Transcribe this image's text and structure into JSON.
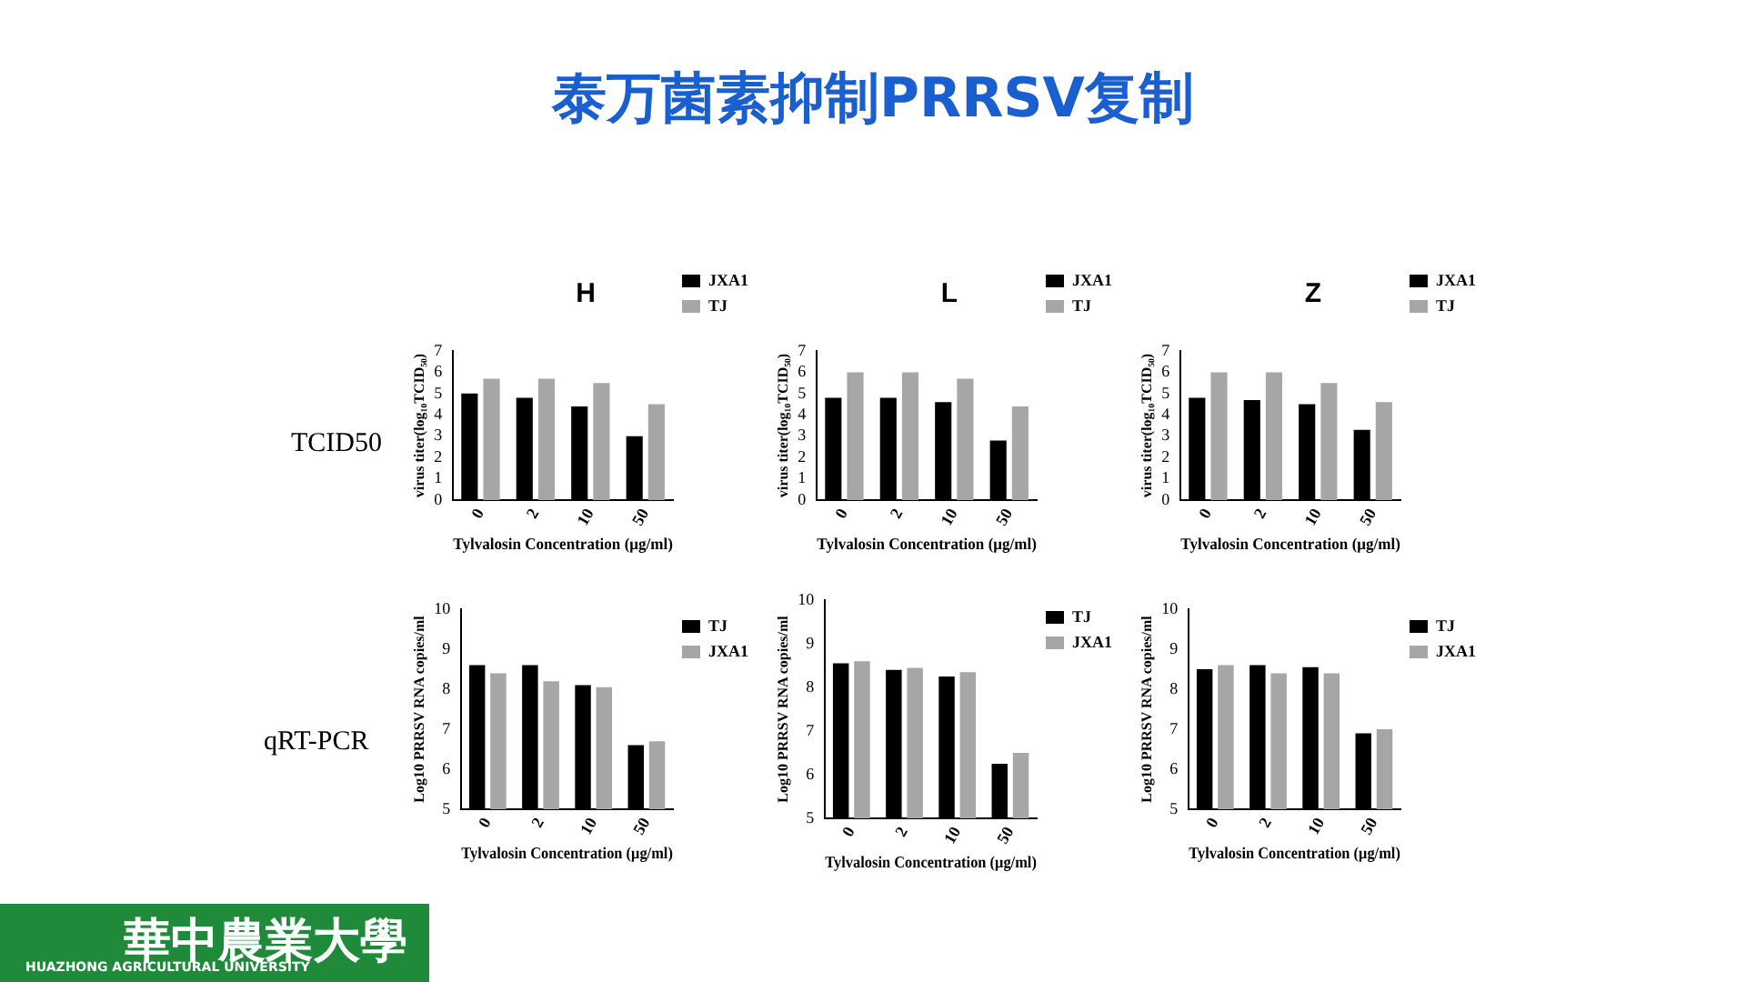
{
  "chart_data": [
    {
      "type": "other",
      "title": "泰万菌素抑制PRRSV复制",
      "annotations": [
        "TCID50",
        "qRT-PCR",
        "華中農業大學",
        "HUAZHONG AGRICULTURAL UNIVERSITY"
      ]
    },
    {
      "type": "bar",
      "title": "H",
      "categories": [
        "0",
        "2",
        "10",
        "50"
      ],
      "xlabel": "Tylvalosin Concentration (μg/ml)",
      "ylabel": "virus titer(log₁₀TCID₅₀)",
      "ylim": [
        0,
        7
      ],
      "yticks": [
        0,
        1,
        2,
        3,
        4,
        5,
        6,
        7
      ],
      "grid": false,
      "legend": "top right",
      "series": [
        {
          "name": "JXA1",
          "color": "#000000",
          "values": [
            5.0,
            4.8,
            4.4,
            3.0
          ]
        },
        {
          "name": "TJ",
          "color": "#a6a6a6",
          "values": [
            5.7,
            5.7,
            5.5,
            4.5
          ]
        }
      ]
    },
    {
      "type": "bar",
      "title": "L",
      "categories": [
        "0",
        "2",
        "10",
        "50"
      ],
      "xlabel": "Tylvalosin Concentration (μg/ml)",
      "ylabel": "virus titer(log₁₀TCID₅₀)",
      "ylim": [
        0,
        7
      ],
      "yticks": [
        0,
        1,
        2,
        3,
        4,
        5,
        6,
        7
      ],
      "grid": false,
      "legend": "top right",
      "series": [
        {
          "name": "JXA1",
          "color": "#000000",
          "values": [
            4.8,
            4.8,
            4.6,
            2.8
          ]
        },
        {
          "name": "TJ",
          "color": "#a6a6a6",
          "values": [
            6.0,
            6.0,
            5.7,
            4.4
          ]
        }
      ]
    },
    {
      "type": "bar",
      "title": "Z",
      "categories": [
        "0",
        "2",
        "10",
        "50"
      ],
      "xlabel": "Tylvalosin Concentration (μg/ml)",
      "ylabel": "virus titer(log₁₀TCID₅₀)",
      "ylim": [
        0,
        7
      ],
      "yticks": [
        0,
        1,
        2,
        3,
        4,
        5,
        6,
        7
      ],
      "grid": false,
      "legend": "top right",
      "series": [
        {
          "name": "JXA1",
          "color": "#000000",
          "values": [
            4.8,
            4.7,
            4.5,
            3.3
          ]
        },
        {
          "name": "TJ",
          "color": "#a6a6a6",
          "values": [
            6.0,
            6.0,
            5.5,
            4.6
          ]
        }
      ]
    },
    {
      "type": "bar",
      "categories": [
        "0",
        "2",
        "10",
        "50"
      ],
      "xlabel": "Tylvalosin Concentration (μg/ml)",
      "ylabel": "Log10 PRRSV RNA copies/ml",
      "ylim": [
        5,
        10
      ],
      "yticks": [
        5,
        6,
        7,
        8,
        9,
        10
      ],
      "grid": false,
      "legend": "top right",
      "series": [
        {
          "name": "TJ",
          "color": "#000000",
          "values": [
            8.6,
            8.6,
            8.1,
            6.6
          ]
        },
        {
          "name": "JXA1",
          "color": "#a6a6a6",
          "values": [
            8.4,
            8.2,
            8.05,
            6.7
          ]
        }
      ]
    },
    {
      "type": "bar",
      "categories": [
        "0",
        "2",
        "10",
        "50"
      ],
      "xlabel": "Tylvalosin Concentration (μg/ml)",
      "ylabel": "Log10 PRRSV RNA copies/ml",
      "ylim": [
        5,
        10
      ],
      "yticks": [
        5,
        6,
        7,
        8,
        9,
        10
      ],
      "grid": false,
      "legend": "top right",
      "series": [
        {
          "name": "TJ",
          "color": "#000000",
          "values": [
            8.55,
            8.4,
            8.25,
            6.25
          ]
        },
        {
          "name": "JXA1",
          "color": "#a6a6a6",
          "values": [
            8.6,
            8.45,
            8.35,
            6.5
          ]
        }
      ]
    },
    {
      "type": "bar",
      "categories": [
        "0",
        "2",
        "10",
        "50"
      ],
      "xlabel": "Tylvalosin Concentration (μg/ml)",
      "ylabel": "Log10 PRRSV RNA copies/ml",
      "ylim": [
        5,
        10
      ],
      "yticks": [
        5,
        6,
        7,
        8,
        9,
        10
      ],
      "grid": false,
      "legend": "top right",
      "series": [
        {
          "name": "TJ",
          "color": "#000000",
          "values": [
            8.5,
            8.6,
            8.55,
            6.9
          ]
        },
        {
          "name": "JXA1",
          "color": "#a6a6a6",
          "values": [
            8.6,
            8.4,
            8.4,
            7.0
          ]
        }
      ]
    }
  ]
}
